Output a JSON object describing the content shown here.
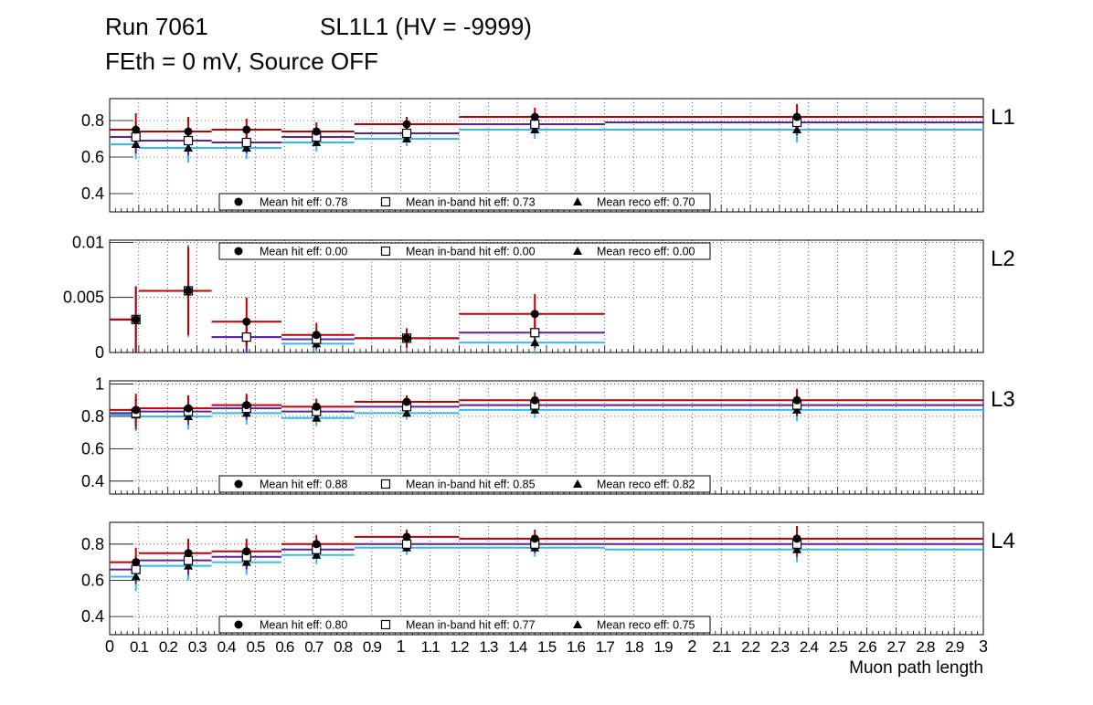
{
  "header": {
    "run": "Run 7061",
    "chamber": "SL1L1 (HV = -9999)",
    "conditions": "FEth = 0 mV, Source OFF"
  },
  "x_axis": {
    "label": "Muon path length",
    "range": [
      0,
      3
    ],
    "tick_labels": [
      "0",
      "0.1",
      "0.2",
      "0.3",
      "0.4",
      "0.5",
      "0.6",
      "0.7",
      "0.8",
      "0.9",
      "1",
      "1.1",
      "1.2",
      "1.3",
      "1.4",
      "1.5",
      "1.6",
      "1.7",
      "1.8",
      "1.9",
      "2",
      "2.1",
      "2.2",
      "2.3",
      "2.4",
      "2.5",
      "2.6",
      "2.7",
      "2.8",
      "2.9",
      "3"
    ]
  },
  "colors": {
    "hit": "#c00000",
    "inband": "#6020a0",
    "reco": "#33bbee",
    "marker": "#000000",
    "grid": "#000000"
  },
  "chart_data": [
    {
      "type": "scatter",
      "panel_label": "L1",
      "ylim": [
        0.3,
        0.92
      ],
      "yticks": [
        0.4,
        0.6,
        0.8
      ],
      "ytick_labels": [
        "0.4",
        "0.6",
        "0.8"
      ],
      "legend": {
        "position": "bottom",
        "hit": "Mean hit  eff: 0.78",
        "inband": "Mean in-band hit eff: 0.73",
        "reco": "Mean reco eff: 0.70"
      },
      "bins": [
        [
          0,
          0.1
        ],
        [
          0.1,
          0.35
        ],
        [
          0.35,
          0.59
        ],
        [
          0.59,
          0.84
        ],
        [
          0.84,
          1.2
        ],
        [
          1.2,
          1.7
        ],
        [
          1.7,
          3.0
        ]
      ],
      "x": [
        0.09,
        0.27,
        0.47,
        0.71,
        1.02,
        1.46,
        2.36
      ],
      "series": [
        {
          "name": "hit",
          "values": [
            0.75,
            0.74,
            0.75,
            0.74,
            0.78,
            0.82,
            0.82
          ],
          "err": [
            0.09,
            0.08,
            0.06,
            0.05,
            0.04,
            0.05,
            0.07
          ]
        },
        {
          "name": "inband",
          "values": [
            0.71,
            0.69,
            0.68,
            0.71,
            0.73,
            0.78,
            0.79
          ],
          "err": [
            0.09,
            0.08,
            0.06,
            0.05,
            0.04,
            0.05,
            0.07
          ]
        },
        {
          "name": "reco",
          "values": [
            0.67,
            0.65,
            0.65,
            0.68,
            0.7,
            0.75,
            0.75
          ],
          "err": [
            0.08,
            0.08,
            0.06,
            0.05,
            0.04,
            0.05,
            0.07
          ]
        }
      ]
    },
    {
      "type": "scatter",
      "panel_label": "L2",
      "ylim": [
        0,
        0.0102
      ],
      "yticks": [
        0,
        0.005,
        0.01
      ],
      "ytick_labels": [
        "0",
        "0.005",
        "0.01"
      ],
      "legend": {
        "position": "top",
        "hit": "Mean hit  eff: 0.00",
        "inband": "Mean in-band hit eff: 0.00",
        "reco": "Mean reco eff: 0.00"
      },
      "bins": [
        [
          0,
          0.1
        ],
        [
          0.1,
          0.35
        ],
        [
          0.35,
          0.59
        ],
        [
          0.59,
          0.84
        ],
        [
          0.84,
          1.2
        ],
        [
          1.2,
          1.7
        ]
      ],
      "x": [
        0.09,
        0.27,
        0.47,
        0.71,
        1.02,
        1.46
      ],
      "series": [
        {
          "name": "hit",
          "values": [
            0.003,
            0.0056,
            0.0028,
            0.0016,
            0.0013,
            0.0035
          ],
          "err": [
            0.003,
            0.004,
            0.0022,
            0.0011,
            0.0009,
            0.0018
          ]
        },
        {
          "name": "inband",
          "values": [
            0.003,
            0.0056,
            0.0014,
            0.0012,
            0.0013,
            0.0018
          ],
          "err": [
            0.003,
            0.004,
            0.0014,
            0.0009,
            0.0009,
            0.0014
          ]
        },
        {
          "name": "reco",
          "values": [
            0.003,
            0.0056,
            0.0014,
            0.0008,
            0.0013,
            0.0009
          ],
          "err": [
            0.003,
            0.0042,
            0.0014,
            0.0008,
            0.0009,
            0.0009
          ]
        }
      ]
    },
    {
      "type": "scatter",
      "panel_label": "L3",
      "ylim": [
        0.32,
        1.02
      ],
      "yticks": [
        0.4,
        0.6,
        0.8,
        1
      ],
      "ytick_labels": [
        "0.4",
        "0.6",
        "0.8",
        "1"
      ],
      "legend": {
        "position": "bottom",
        "hit": "Mean hit  eff: 0.88",
        "inband": "Mean in-band hit eff: 0.85",
        "reco": "Mean reco eff: 0.82"
      },
      "bins": [
        [
          0,
          0.1
        ],
        [
          0.1,
          0.35
        ],
        [
          0.35,
          0.59
        ],
        [
          0.59,
          0.84
        ],
        [
          0.84,
          1.2
        ],
        [
          1.2,
          1.7
        ],
        [
          1.7,
          3.0
        ]
      ],
      "x": [
        0.09,
        0.27,
        0.47,
        0.71,
        1.02,
        1.46,
        2.36
      ],
      "series": [
        {
          "name": "hit",
          "values": [
            0.84,
            0.85,
            0.87,
            0.86,
            0.89,
            0.9,
            0.9
          ],
          "err": [
            0.1,
            0.08,
            0.07,
            0.05,
            0.04,
            0.05,
            0.07
          ]
        },
        {
          "name": "inband",
          "values": [
            0.82,
            0.83,
            0.85,
            0.83,
            0.86,
            0.87,
            0.87
          ],
          "err": [
            0.1,
            0.08,
            0.07,
            0.05,
            0.04,
            0.05,
            0.07
          ]
        },
        {
          "name": "reco",
          "values": [
            0.81,
            0.8,
            0.82,
            0.79,
            0.82,
            0.84,
            0.84
          ],
          "err": [
            0.1,
            0.08,
            0.07,
            0.05,
            0.04,
            0.05,
            0.07
          ]
        }
      ]
    },
    {
      "type": "scatter",
      "panel_label": "L4",
      "ylim": [
        0.3,
        0.92
      ],
      "yticks": [
        0.4,
        0.6,
        0.8
      ],
      "ytick_labels": [
        "0.4",
        "0.6",
        "0.8"
      ],
      "legend": {
        "position": "bottom",
        "hit": "Mean hit  eff: 0.80",
        "inband": "Mean in-band hit eff: 0.77",
        "reco": "Mean reco eff: 0.75"
      },
      "bins": [
        [
          0,
          0.1
        ],
        [
          0.1,
          0.35
        ],
        [
          0.35,
          0.59
        ],
        [
          0.59,
          0.84
        ],
        [
          0.84,
          1.2
        ],
        [
          1.2,
          1.7
        ],
        [
          1.7,
          3.0
        ]
      ],
      "x": [
        0.09,
        0.27,
        0.47,
        0.71,
        1.02,
        1.46,
        2.36
      ],
      "series": [
        {
          "name": "hit",
          "values": [
            0.7,
            0.75,
            0.76,
            0.8,
            0.84,
            0.83,
            0.83
          ],
          "err": [
            0.08,
            0.08,
            0.07,
            0.05,
            0.04,
            0.05,
            0.07
          ]
        },
        {
          "name": "inband",
          "values": [
            0.66,
            0.71,
            0.73,
            0.77,
            0.8,
            0.8,
            0.8
          ],
          "err": [
            0.08,
            0.08,
            0.07,
            0.05,
            0.04,
            0.05,
            0.07
          ]
        },
        {
          "name": "reco",
          "values": [
            0.62,
            0.68,
            0.7,
            0.74,
            0.78,
            0.78,
            0.77
          ],
          "err": [
            0.08,
            0.08,
            0.07,
            0.05,
            0.04,
            0.05,
            0.07
          ]
        }
      ]
    }
  ]
}
